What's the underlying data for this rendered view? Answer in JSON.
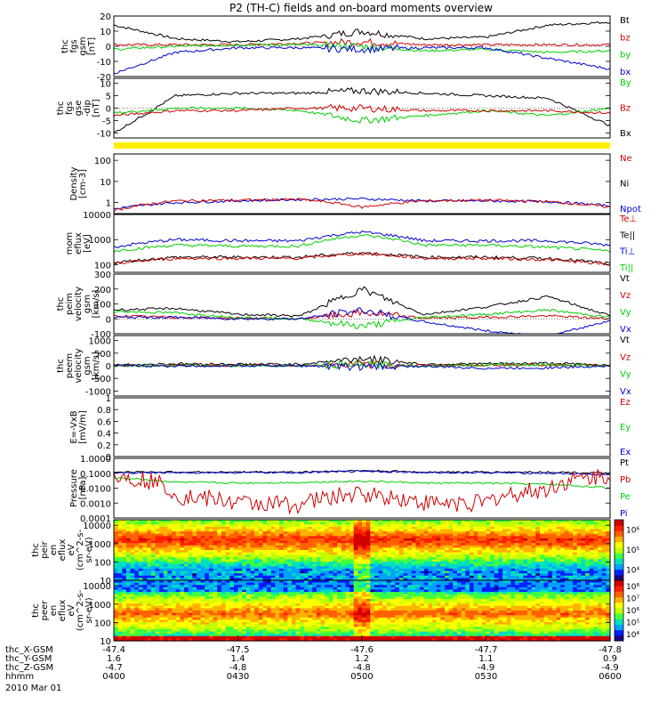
{
  "title": "P2 (TH-C) fields and on-board moments overview",
  "date_label": "2010 Mar 01",
  "colors": {
    "black": "#000000",
    "red": "#d00000",
    "green": "#00d000",
    "blue": "#0000d0",
    "yellow": "#ffee00"
  },
  "chart_data": [
    {
      "type": "line",
      "ylabel": [
        "thc",
        "fgs",
        "gsm",
        "[nT]"
      ],
      "ylim": [
        -20,
        20
      ],
      "yticks": [
        -20,
        -10,
        0,
        10,
        20
      ],
      "legend": [
        {
          "name": "Bt",
          "color": "black"
        },
        {
          "name": "bz",
          "color": "red"
        },
        {
          "name": "by",
          "color": "green"
        },
        {
          "name": "bx",
          "color": "blue"
        }
      ],
      "x": [
        4.0,
        4.25,
        4.5,
        4.75,
        5.0,
        5.25,
        5.5,
        5.75,
        6.0
      ],
      "series": [
        {
          "name": "Bt",
          "color": "black",
          "values": [
            14,
            5,
            3,
            5,
            10,
            5,
            6,
            14,
            16
          ]
        },
        {
          "name": "bz",
          "color": "red",
          "values": [
            1,
            1,
            1,
            2,
            3,
            1,
            1,
            1,
            1
          ]
        },
        {
          "name": "by",
          "color": "green",
          "values": [
            -2,
            0,
            1,
            1,
            0,
            -3,
            -2,
            -4,
            -3
          ]
        },
        {
          "name": "bx",
          "color": "blue",
          "values": [
            -18,
            -4,
            -1,
            -1,
            -2,
            -1,
            -1,
            -8,
            -15
          ]
        }
      ]
    },
    {
      "type": "line",
      "ylabel": [
        "thc",
        "fgs",
        "gse",
        "-dip",
        "[nT]"
      ],
      "ylim": [
        -12,
        12
      ],
      "yticks": [
        -10,
        -5,
        0,
        5,
        10
      ],
      "legend": [
        {
          "name": "By",
          "color": "green"
        },
        {
          "name": "Bz",
          "color": "red"
        },
        {
          "name": "Bx",
          "color": "black"
        }
      ],
      "x": [
        4.0,
        4.25,
        4.5,
        4.75,
        5.0,
        5.25,
        5.5,
        5.75,
        6.0
      ],
      "series": [
        {
          "name": "Bx",
          "color": "black",
          "values": [
            -10,
            5,
            6,
            6,
            7,
            6,
            5,
            4,
            -7
          ]
        },
        {
          "name": "By",
          "color": "green",
          "values": [
            -2,
            0,
            0,
            -1,
            -5,
            -3,
            -1,
            -3,
            0
          ]
        },
        {
          "name": "Bz",
          "color": "red",
          "values": [
            -3,
            -1,
            -1,
            0,
            0,
            -1,
            -1,
            -1,
            -2
          ]
        }
      ]
    },
    {
      "type": "line",
      "ylabel": [
        "Density",
        "[cm-3]"
      ],
      "yscale": "log",
      "ylim": [
        0.3,
        200
      ],
      "yticks": [
        1,
        10,
        100
      ],
      "legend": [
        {
          "name": "Ne",
          "color": "red"
        },
        {
          "name": "Ni",
          "color": "black"
        },
        {
          "name": "Npot",
          "color": "blue"
        }
      ],
      "x": [
        4.0,
        4.25,
        4.5,
        4.75,
        5.0,
        5.25,
        5.5,
        5.75,
        6.0
      ],
      "series": [
        {
          "name": "Npot",
          "color": "blue",
          "values": [
            0.5,
            1.0,
            1.2,
            1.4,
            1.5,
            1.2,
            1.2,
            1.1,
            0.7
          ]
        },
        {
          "name": "Ne",
          "color": "red",
          "values": [
            0.4,
            1.2,
            1.3,
            1.4,
            0.6,
            1.2,
            1.3,
            1.1,
            0.6
          ]
        }
      ]
    },
    {
      "type": "line",
      "ylabel": [
        "mom",
        "eflux",
        "[eV]"
      ],
      "yscale": "log",
      "ylim": [
        50,
        10000
      ],
      "yticks": [
        100,
        1000,
        10000
      ],
      "legend": [
        {
          "name": "Te⊥",
          "color": "red"
        },
        {
          "name": "Te||",
          "color": "black"
        },
        {
          "name": "Ti⊥",
          "color": "blue"
        },
        {
          "name": "Ti||",
          "color": "green"
        }
      ],
      "x": [
        4.0,
        4.25,
        4.5,
        4.75,
        5.0,
        5.25,
        5.5,
        5.75,
        6.0
      ],
      "series": [
        {
          "name": "Ti⊥",
          "color": "blue",
          "values": [
            500,
            1000,
            900,
            900,
            2000,
            900,
            900,
            900,
            600
          ]
        },
        {
          "name": "Ti||",
          "color": "green",
          "values": [
            350,
            600,
            550,
            550,
            1500,
            600,
            600,
            500,
            350
          ]
        },
        {
          "name": "Te||",
          "color": "black",
          "values": [
            120,
            200,
            200,
            200,
            300,
            200,
            200,
            180,
            110
          ]
        },
        {
          "name": "Te⊥",
          "color": "red",
          "values": [
            110,
            180,
            180,
            180,
            280,
            180,
            180,
            160,
            100
          ]
        }
      ]
    },
    {
      "type": "line",
      "ylabel": [
        "thc",
        "peim",
        "velocity",
        "gsm",
        "[km/s]"
      ],
      "ylim": [
        -100,
        300
      ],
      "yticks": [
        -100,
        0,
        100,
        200,
        300
      ],
      "legend": [
        {
          "name": "Vt",
          "color": "black"
        },
        {
          "name": "Vz",
          "color": "red"
        },
        {
          "name": "Vy",
          "color": "green"
        },
        {
          "name": "Vx",
          "color": "blue"
        }
      ],
      "x": [
        4.0,
        4.25,
        4.5,
        4.75,
        5.0,
        5.25,
        5.5,
        5.75,
        6.0
      ],
      "series": [
        {
          "name": "Vt",
          "color": "black",
          "values": [
            60,
            70,
            30,
            20,
            200,
            30,
            80,
            150,
            20
          ]
        },
        {
          "name": "Vz",
          "color": "red",
          "values": [
            20,
            10,
            5,
            0,
            40,
            5,
            10,
            20,
            0
          ]
        },
        {
          "name": "Vy",
          "color": "green",
          "values": [
            50,
            40,
            10,
            0,
            -50,
            10,
            30,
            60,
            10
          ]
        },
        {
          "name": "Vx",
          "color": "blue",
          "values": [
            10,
            10,
            0,
            0,
            60,
            -20,
            -80,
            -120,
            -10
          ]
        }
      ]
    },
    {
      "type": "line",
      "ylabel": [
        "thc",
        "peem",
        "velocity",
        "gsm",
        "[km/s]"
      ],
      "ylim": [
        -1200,
        1200
      ],
      "yticks": [
        -1000,
        -500,
        0,
        500,
        1000
      ],
      "legend": [
        {
          "name": "Vt",
          "color": "black"
        },
        {
          "name": "Vz",
          "color": "red"
        },
        {
          "name": "Vy",
          "color": "green"
        },
        {
          "name": "Vx",
          "color": "blue"
        }
      ],
      "x": [
        4.0,
        4.25,
        4.5,
        4.75,
        5.0,
        5.25,
        5.5,
        5.75,
        6.0
      ],
      "series": [
        {
          "name": "Vt",
          "color": "black",
          "values": [
            30,
            80,
            60,
            60,
            300,
            60,
            80,
            100,
            30
          ]
        },
        {
          "name": "Vz",
          "color": "red",
          "values": [
            0,
            20,
            10,
            10,
            50,
            10,
            30,
            30,
            0
          ]
        },
        {
          "name": "Vy",
          "color": "green",
          "values": [
            0,
            10,
            10,
            0,
            40,
            0,
            30,
            40,
            0
          ]
        },
        {
          "name": "Vx",
          "color": "blue",
          "values": [
            0,
            -10,
            0,
            0,
            -40,
            -20,
            -100,
            -80,
            0
          ]
        }
      ]
    },
    {
      "type": "line",
      "ylabel": [
        "E=-VxB",
        "[mV/m]"
      ],
      "ylim": [
        0,
        1
      ],
      "yticks": [
        0,
        0.2,
        0.4,
        0.6,
        0.8,
        1.0
      ],
      "legend": [
        {
          "name": "Ez",
          "color": "red"
        },
        {
          "name": "Ey",
          "color": "green"
        },
        {
          "name": "Ex",
          "color": "blue"
        }
      ],
      "x": [],
      "series": []
    },
    {
      "type": "line",
      "ylabel": [
        "Pressure",
        "[nPa]"
      ],
      "yscale": "log",
      "ylim": [
        0.0001,
        1
      ],
      "yticks": [
        0.0001,
        0.001,
        0.01,
        0.1,
        1
      ],
      "ytick_labels": [
        "0.0001",
        "0.0010",
        "0.0100",
        "0.1000",
        "1.0000"
      ],
      "legend": [
        {
          "name": "Pt",
          "color": "black"
        },
        {
          "name": "Pb",
          "color": "red"
        },
        {
          "name": "Pe",
          "color": "green"
        },
        {
          "name": "Pi",
          "color": "blue"
        }
      ],
      "x": [
        4.0,
        4.25,
        4.5,
        4.75,
        5.0,
        5.25,
        5.5,
        5.75,
        6.0
      ],
      "series": [
        {
          "name": "Pt",
          "color": "black",
          "values": [
            0.12,
            0.12,
            0.12,
            0.12,
            0.15,
            0.12,
            0.12,
            0.12,
            0.1
          ]
        },
        {
          "name": "Pi",
          "color": "blue",
          "values": [
            0.1,
            0.11,
            0.11,
            0.11,
            0.14,
            0.11,
            0.11,
            0.1,
            0.08
          ]
        },
        {
          "name": "Pe",
          "color": "green",
          "values": [
            0.05,
            0.025,
            0.022,
            0.024,
            0.03,
            0.022,
            0.022,
            0.018,
            0.01
          ]
        },
        {
          "name": "Pb",
          "color": "red",
          "values": [
            0.07,
            0.003,
            0.001,
            0.0008,
            0.004,
            0.001,
            0.001,
            0.008,
            0.07
          ]
        }
      ]
    },
    {
      "type": "heatmap",
      "ylabel": [
        "thc",
        "peir",
        "en",
        "eflux",
        "eV",
        "(cm^2-s-",
        "sr-eV)"
      ],
      "yscale": "log",
      "ylim": [
        10,
        20000
      ],
      "yticks": [
        10,
        100,
        1000,
        10000
      ],
      "colorbar": {
        "scale": "log",
        "range": [
          3000,
          3000000
        ],
        "ticks": [
          "10⁴",
          "10⁵",
          "10⁶"
        ]
      }
    },
    {
      "type": "heatmap",
      "ylabel": [
        "thc",
        "peer",
        "en",
        "eflux",
        "eV",
        "(cm^2-s-",
        "sr-eV)"
      ],
      "yscale": "log",
      "ylim": [
        10,
        20000
      ],
      "yticks": [
        10,
        100,
        1000,
        10000
      ],
      "colorbar": {
        "scale": "log",
        "range": [
          3000,
          100000000
        ],
        "ticks": [
          "10⁴",
          "10⁵",
          "10⁶",
          "10⁷",
          "10⁸"
        ]
      }
    }
  ],
  "x_axis": {
    "label_rows": [
      "thc_X-GSM",
      "thc_Y-GSM",
      "thc_Z-GSM",
      "hhmm"
    ],
    "ticks": [
      {
        "t": 4.0,
        "values": [
          "-47.4",
          "1.6",
          "-4.7",
          "0400"
        ]
      },
      {
        "t": 4.5,
        "values": [
          "-47.5",
          "1.4",
          "-4.8",
          "0430"
        ]
      },
      {
        "t": 5.0,
        "values": [
          "-47.6",
          "1.2",
          "-4.8",
          "0500"
        ]
      },
      {
        "t": 5.5,
        "values": [
          "-47.7",
          "1.1",
          "-4.9",
          "0530"
        ]
      },
      {
        "t": 6.0,
        "values": [
          "-47.8",
          "0.9",
          "-4.9",
          "0600"
        ]
      }
    ]
  }
}
